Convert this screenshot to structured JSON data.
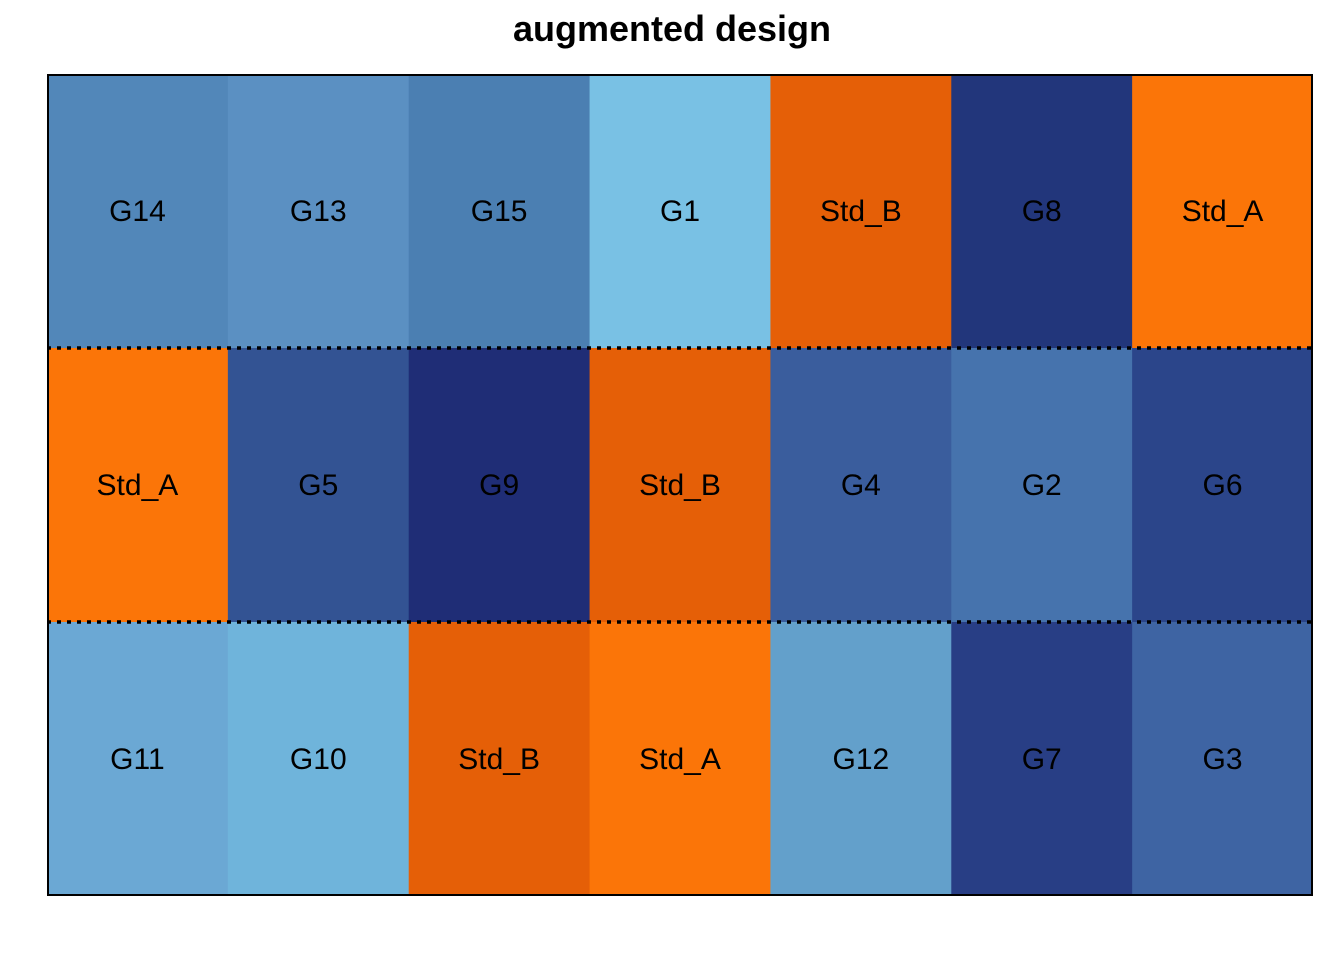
{
  "title": "augmented design",
  "legend_note": "",
  "colors": {
    "G1": "#79c1e4",
    "G2": "#4673ad",
    "G3": "#3e64a3",
    "G4": "#3a5d9d",
    "G5": "#335393",
    "G6": "#2b458a",
    "G7": "#283e85",
    "G8": "#22367b",
    "G9": "#1f2d76",
    "G10": "#6fb4db",
    "G11": "#6ba8d4",
    "G12": "#63a0cb",
    "G13": "#5b90c2",
    "G14": "#5287b9",
    "G15": "#4b7fb2",
    "Std_A": "#fb7508",
    "Std_B": "#e55f07",
    "frame": "#000000",
    "divider": "#000000"
  },
  "chart_data": {
    "type": "table",
    "title": "augmented design",
    "rows": 3,
    "cols": 7,
    "blocks": 3,
    "cells": [
      [
        "G14",
        "G13",
        "G15",
        "G1",
        "Std_B",
        "G8",
        "Std_A"
      ],
      [
        "Std_A",
        "G5",
        "G9",
        "Std_B",
        "G4",
        "G2",
        "G6"
      ],
      [
        "G11",
        "G10",
        "Std_B",
        "Std_A",
        "G12",
        "G7",
        "G3"
      ]
    ],
    "block_dividers": "dotted lines between rows"
  }
}
